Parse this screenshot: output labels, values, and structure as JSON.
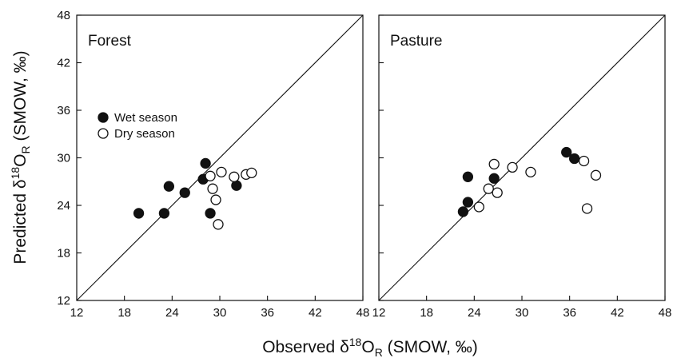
{
  "chart_data": {
    "type": "scatter",
    "xlabel": {
      "prefix": "Observed δ",
      "sup": "18",
      "mid": "O",
      "sub": "R",
      "suffix": " (SMOW, ‰)"
    },
    "ylabel": {
      "prefix": "Predicted δ",
      "sup": "18",
      "mid": "O",
      "sub": "R",
      "suffix": " (SMOW, ‰)"
    },
    "xlim": [
      12,
      48
    ],
    "ylim": [
      12,
      48
    ],
    "ticks": [
      12,
      18,
      24,
      30,
      36,
      42,
      48
    ],
    "tick_labels": [
      "12",
      "18",
      "24",
      "30",
      "36",
      "42",
      "48"
    ],
    "reference_line": "1:1",
    "legend": {
      "placement": "upper-left of first panel",
      "entries": [
        {
          "label": "Wet season",
          "marker": "filled-circle"
        },
        {
          "label": "Dry season",
          "marker": "open-circle"
        }
      ]
    },
    "panels": [
      {
        "label": "Forest",
        "series": [
          {
            "marker": "filled-circle",
            "points": [
              [
                19.8,
                23.0
              ],
              [
                23.0,
                23.0
              ],
              [
                23.6,
                26.4
              ],
              [
                25.6,
                25.6
              ],
              [
                27.9,
                27.3
              ],
              [
                28.2,
                29.3
              ],
              [
                28.8,
                23.0
              ],
              [
                32.1,
                26.5
              ]
            ]
          },
          {
            "marker": "open-circle",
            "points": [
              [
                28.8,
                27.7
              ],
              [
                29.1,
                26.1
              ],
              [
                29.5,
                24.7
              ],
              [
                29.8,
                21.6
              ],
              [
                30.2,
                28.2
              ],
              [
                31.8,
                27.6
              ],
              [
                33.3,
                27.9
              ],
              [
                34.0,
                28.1
              ]
            ]
          }
        ]
      },
      {
        "label": "Pasture",
        "series": [
          {
            "marker": "filled-circle",
            "points": [
              [
                22.6,
                23.2
              ],
              [
                23.2,
                24.4
              ],
              [
                23.2,
                27.6
              ],
              [
                26.5,
                27.4
              ],
              [
                35.6,
                30.7
              ],
              [
                36.6,
                29.9
              ]
            ]
          },
          {
            "marker": "open-circle",
            "points": [
              [
                24.6,
                23.8
              ],
              [
                25.8,
                26.1
              ],
              [
                26.5,
                29.2
              ],
              [
                26.9,
                25.6
              ],
              [
                28.8,
                28.8
              ],
              [
                31.1,
                28.2
              ],
              [
                37.8,
                29.6
              ],
              [
                38.2,
                23.6
              ],
              [
                39.3,
                27.8
              ]
            ]
          }
        ]
      }
    ]
  }
}
